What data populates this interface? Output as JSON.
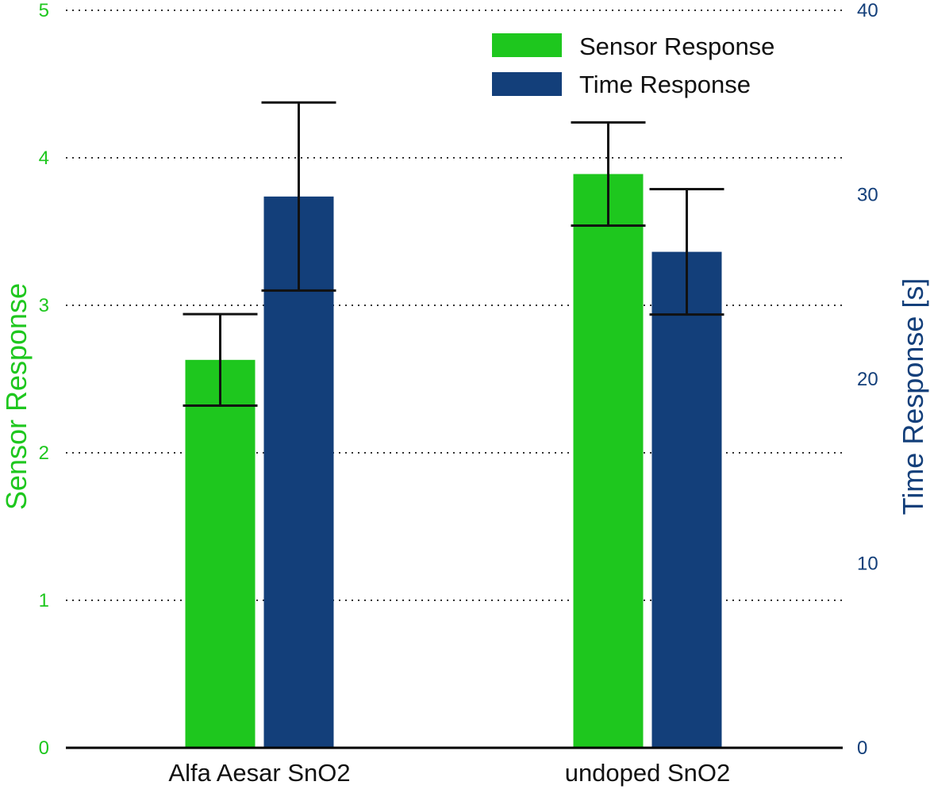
{
  "chart_data": {
    "type": "bar",
    "categories": [
      "Alfa Aesar SnO2",
      "undoped SnO2"
    ],
    "series": [
      {
        "name": "Sensor Response",
        "axis": "left",
        "color": "#1ec71e",
        "values": [
          2.63,
          3.89
        ],
        "error": [
          0.31,
          0.35
        ]
      },
      {
        "name": "Time Response",
        "axis": "right",
        "color": "#133f7a",
        "values": [
          29.9,
          26.9
        ],
        "error": [
          5.1,
          3.4
        ]
      }
    ],
    "ylabel": "Sensor Response",
    "ylabel_color": "#1ec71e",
    "ylim": [
      0,
      5
    ],
    "yticks": [
      "0",
      "1",
      "2",
      "3",
      "4",
      "5"
    ],
    "y2label": "Time Response [s]",
    "y2label_color": "#133f7a",
    "y2lim": [
      0,
      40
    ],
    "y2ticks": [
      "0",
      "10",
      "20",
      "30",
      "40"
    ],
    "grid": true,
    "legend_position": "top-right"
  }
}
